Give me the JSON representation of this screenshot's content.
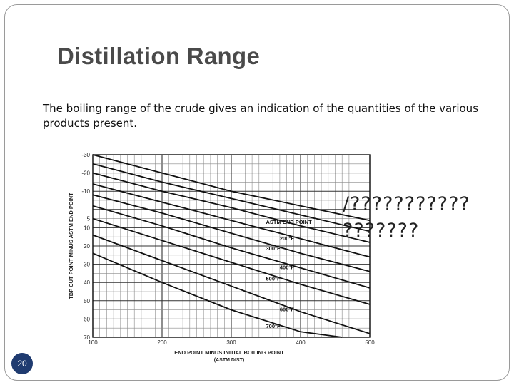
{
  "slide": {
    "title": "Distillation Range",
    "body": "The boiling range of the crude gives an indication of the quantities of the various products present.",
    "overlay_text": "/??????????? ???????",
    "page_number": "20"
  },
  "chart_data": {
    "type": "line",
    "title": "",
    "xlabel": "END POINT MINUS INITIAL BOILING POINT",
    "xlabel_sub": "(ASTM DIST)",
    "ylabel": "TBP CUT POINT MINUS ASTM END POINT",
    "xlim": [
      100,
      500
    ],
    "ylim": [
      -30,
      70
    ],
    "x_ticks": [
      100,
      200,
      300,
      400,
      500
    ],
    "y_ticks": [
      -30,
      -20,
      -10,
      5,
      10,
      20,
      30,
      40,
      50,
      60,
      70
    ],
    "grid": true,
    "series": [
      {
        "name": "",
        "x": [
          100,
          200,
          300,
          400,
          500
        ],
        "y": [
          -30,
          -20,
          -10,
          -2,
          6
        ]
      },
      {
        "name": "",
        "x": [
          100,
          200,
          300,
          400,
          500
        ],
        "y": [
          -25,
          -15,
          -6,
          3,
          12
        ]
      },
      {
        "name": "ASTM END POINT",
        "x": [
          100,
          200,
          300,
          400,
          500
        ],
        "y": [
          -20,
          -10,
          -1,
          9,
          18
        ]
      },
      {
        "name": "200°F",
        "x": [
          100,
          200,
          300,
          400,
          500
        ],
        "y": [
          -14,
          -4,
          6,
          16,
          26
        ]
      },
      {
        "name": "300°F",
        "x": [
          100,
          200,
          300,
          400,
          500
        ],
        "y": [
          -8,
          2,
          13,
          24,
          34
        ]
      },
      {
        "name": "400°F",
        "x": [
          100,
          200,
          300,
          400,
          500
        ],
        "y": [
          -2,
          9,
          21,
          32,
          43
        ]
      },
      {
        "name": "500°F",
        "x": [
          100,
          200,
          300,
          400,
          500
        ],
        "y": [
          5,
          17,
          29,
          41,
          52
        ]
      },
      {
        "name": "600°F",
        "x": [
          100,
          200,
          300,
          400,
          500
        ],
        "y": [
          14,
          28,
          42,
          56,
          68
        ]
      },
      {
        "name": "700°F",
        "x": [
          100,
          200,
          300,
          400,
          460
        ],
        "y": [
          24,
          40,
          55,
          67,
          70
        ]
      }
    ]
  }
}
